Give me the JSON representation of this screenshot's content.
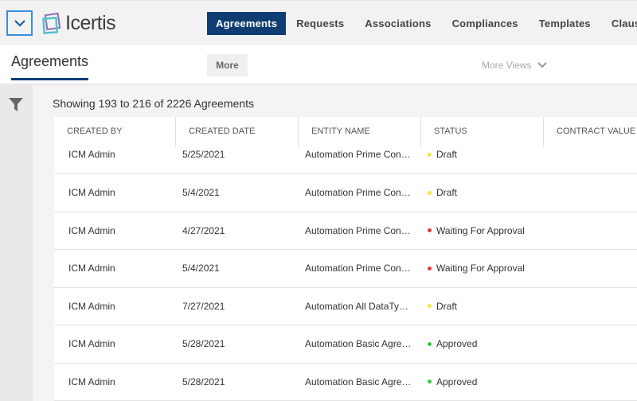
{
  "header": {
    "logo": "Icertis",
    "nav": [
      {
        "label": "Agreements",
        "active": true
      },
      {
        "label": "Requests"
      },
      {
        "label": "Associations"
      },
      {
        "label": "Compliances"
      },
      {
        "label": "Templates"
      },
      {
        "label": "Clauses"
      }
    ]
  },
  "subbar": {
    "title": "Agreements",
    "more": "More",
    "more_views": "More Views"
  },
  "summary": "Showing 193 to 216 of 2226 Agreements",
  "table": {
    "columns": [
      "CREATED BY",
      "CREATED DATE",
      "ENTITY NAME",
      "STATUS",
      "CONTRACT VALUE"
    ],
    "rows": [
      {
        "created_by": "ICM Admin",
        "date": "5/25/2021",
        "entity": "Automation Prime Con…",
        "status": "Draft",
        "color": "#f0e83a"
      },
      {
        "created_by": "ICM Admin",
        "date": "5/4/2021",
        "entity": "Automation Prime Con…",
        "status": "Draft",
        "color": "#f0e83a"
      },
      {
        "created_by": "ICM Admin",
        "date": "4/27/2021",
        "entity": "Automation Prime Con…",
        "status": "Waiting For Approval",
        "color": "#e53935"
      },
      {
        "created_by": "ICM Admin",
        "date": "5/4/2021",
        "entity": "Automation Prime Con…",
        "status": "Waiting For Approval",
        "color": "#e53935"
      },
      {
        "created_by": "ICM Admin",
        "date": "7/27/2021",
        "entity": "Automation All DataTy…",
        "status": "Draft",
        "color": "#f0e83a"
      },
      {
        "created_by": "ICM Admin",
        "date": "5/28/2021",
        "entity": "Automation Basic Agre…",
        "status": "Approved",
        "color": "#2ecc40"
      },
      {
        "created_by": "ICM Admin",
        "date": "5/28/2021",
        "entity": "Automation Basic Agre…",
        "status": "Approved",
        "color": "#2ecc40"
      }
    ]
  },
  "colors": {
    "accent": "#0f3d73"
  }
}
